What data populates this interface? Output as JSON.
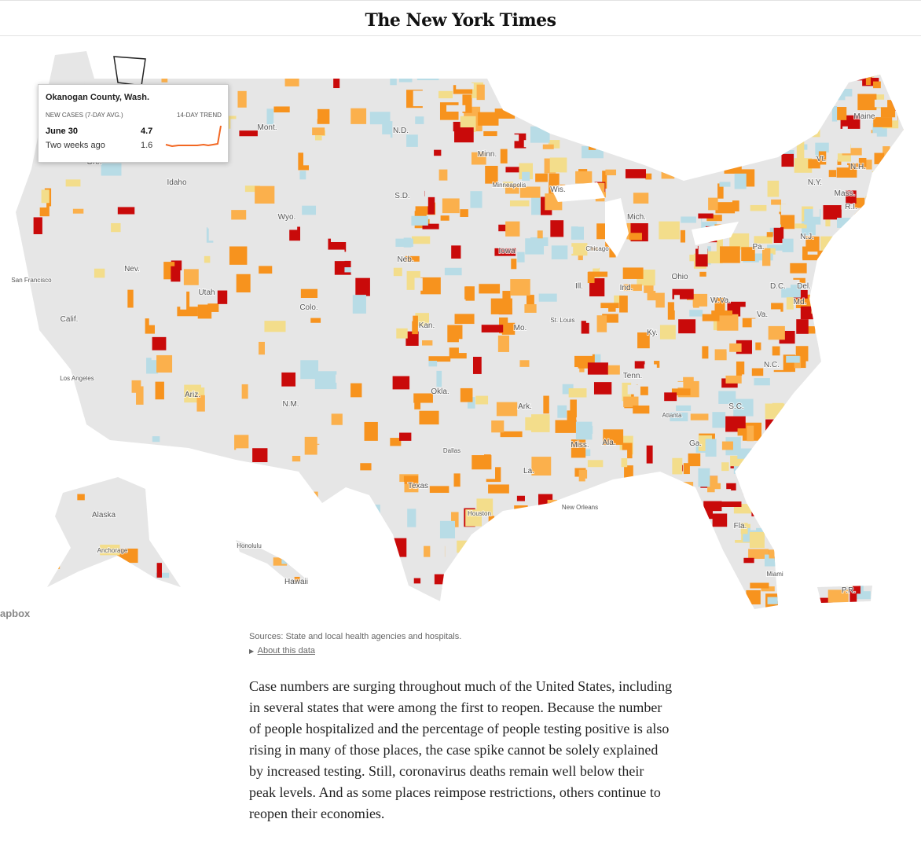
{
  "header": {
    "logo": "The New York Times"
  },
  "map": {
    "labels": [
      "Mont.",
      "N.D.",
      "Minn.",
      "Maine",
      "Vt.",
      "N.H.",
      "N.Y.",
      "Mass.",
      "R.I.",
      "Wis.",
      "Minneapolis",
      "S.D.",
      "Idaho",
      "Wyo.",
      "Mich.",
      "Ore.",
      "Iowa",
      "Chicago",
      "Neb.",
      "Nev.",
      "San Francisco",
      "Utah",
      "Pa.",
      "N.J.",
      "Ohio",
      "Ill.",
      "Ind.",
      "Del.",
      "D.C.",
      "Md.",
      "W.Va.",
      "Colo.",
      "Calif.",
      "Va.",
      "Kan.",
      "St. Louis",
      "Mo.",
      "Ky.",
      "N.C.",
      "Tenn.",
      "Los Angeles",
      "Okla.",
      "Ariz.",
      "Ark.",
      "N.M.",
      "S.C.",
      "Atlanta",
      "Ala.",
      "Miss.",
      "Ga.",
      "Dallas",
      "La.",
      "Texas",
      "New Orleans",
      "Houston",
      "Fla.",
      "Alaska",
      "Anchorage",
      "Honolulu",
      "Hawaii",
      "Miami",
      "P.R."
    ],
    "attribution": "apbox"
  },
  "tooltip": {
    "title": "Okanogan County, Wash.",
    "metric": "NEW CASES (7-DAY AVG.)",
    "trend_label": "14-DAY TREND",
    "current_label": "June 30",
    "current_value": "4.7",
    "prior_label": "Two weeks ago",
    "prior_value": "1.6"
  },
  "sources": "Sources: State and local health agencies and hospitals.",
  "about": "About this data",
  "paragraph": "Case numbers are surging throughout much of the United States, including in several states that were among the first to reopen. Because the number of people hospitalized and the percentage of people testing positive is also rising in many of those places, the case spike cannot be solely explained by increased testing. Still, coronavirus deaths remain well below their peak levels. And as some places reimpose restrictions, others continue to reopen their economies."
}
